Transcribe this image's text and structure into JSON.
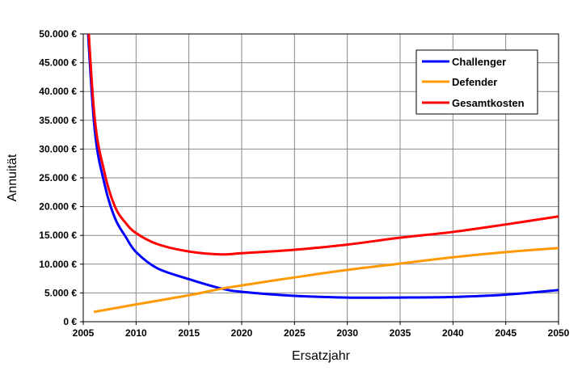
{
  "chart_data": {
    "type": "line",
    "title": "",
    "xlabel": "Ersatzjahr",
    "ylabel": "Annuität",
    "xlim": [
      2005,
      2050
    ],
    "ylim": [
      0,
      50000
    ],
    "x_ticks": [
      "2005",
      "2010",
      "2015",
      "2020",
      "2025",
      "2030",
      "2035",
      "2040",
      "2045",
      "2050"
    ],
    "y_ticks": [
      "0 €",
      "5.000 €",
      "10.000 €",
      "15.000 €",
      "20.000 €",
      "25.000 €",
      "30.000 €",
      "35.000 €",
      "40.000 €",
      "45.000 €",
      "50.000 €"
    ],
    "grid": true,
    "legend_position": "top-right",
    "series": [
      {
        "name": "Challenger",
        "color": "#0000ff",
        "x": [
          2005,
          2006,
          2007,
          2008,
          2009,
          2010,
          2012,
          2015,
          2018,
          2020,
          2025,
          2030,
          2035,
          2040,
          2045,
          2050
        ],
        "y": [
          65000,
          35000,
          24000,
          18000,
          14800,
          12100,
          9300,
          7400,
          5800,
          5200,
          4500,
          4200,
          4200,
          4300,
          4700,
          5500
        ]
      },
      {
        "name": "Defender",
        "color": "#ff9900",
        "x": [
          2006,
          2010,
          2015,
          2018,
          2020,
          2025,
          2030,
          2035,
          2040,
          2045,
          2050
        ],
        "y": [
          1700,
          3000,
          4600,
          5700,
          6300,
          7700,
          9000,
          10100,
          11200,
          12100,
          12800
        ]
      },
      {
        "name": "Gesamtkosten",
        "color": "#ff0000",
        "x": [
          2005,
          2006,
          2007,
          2008,
          2009,
          2010,
          2012,
          2015,
          2018,
          2020,
          2025,
          2030,
          2035,
          2040,
          2045,
          2050
        ],
        "y": [
          67000,
          37000,
          26000,
          20000,
          17200,
          15400,
          13500,
          12200,
          11700,
          11900,
          12500,
          13400,
          14600,
          15600,
          16900,
          18300
        ]
      }
    ]
  }
}
